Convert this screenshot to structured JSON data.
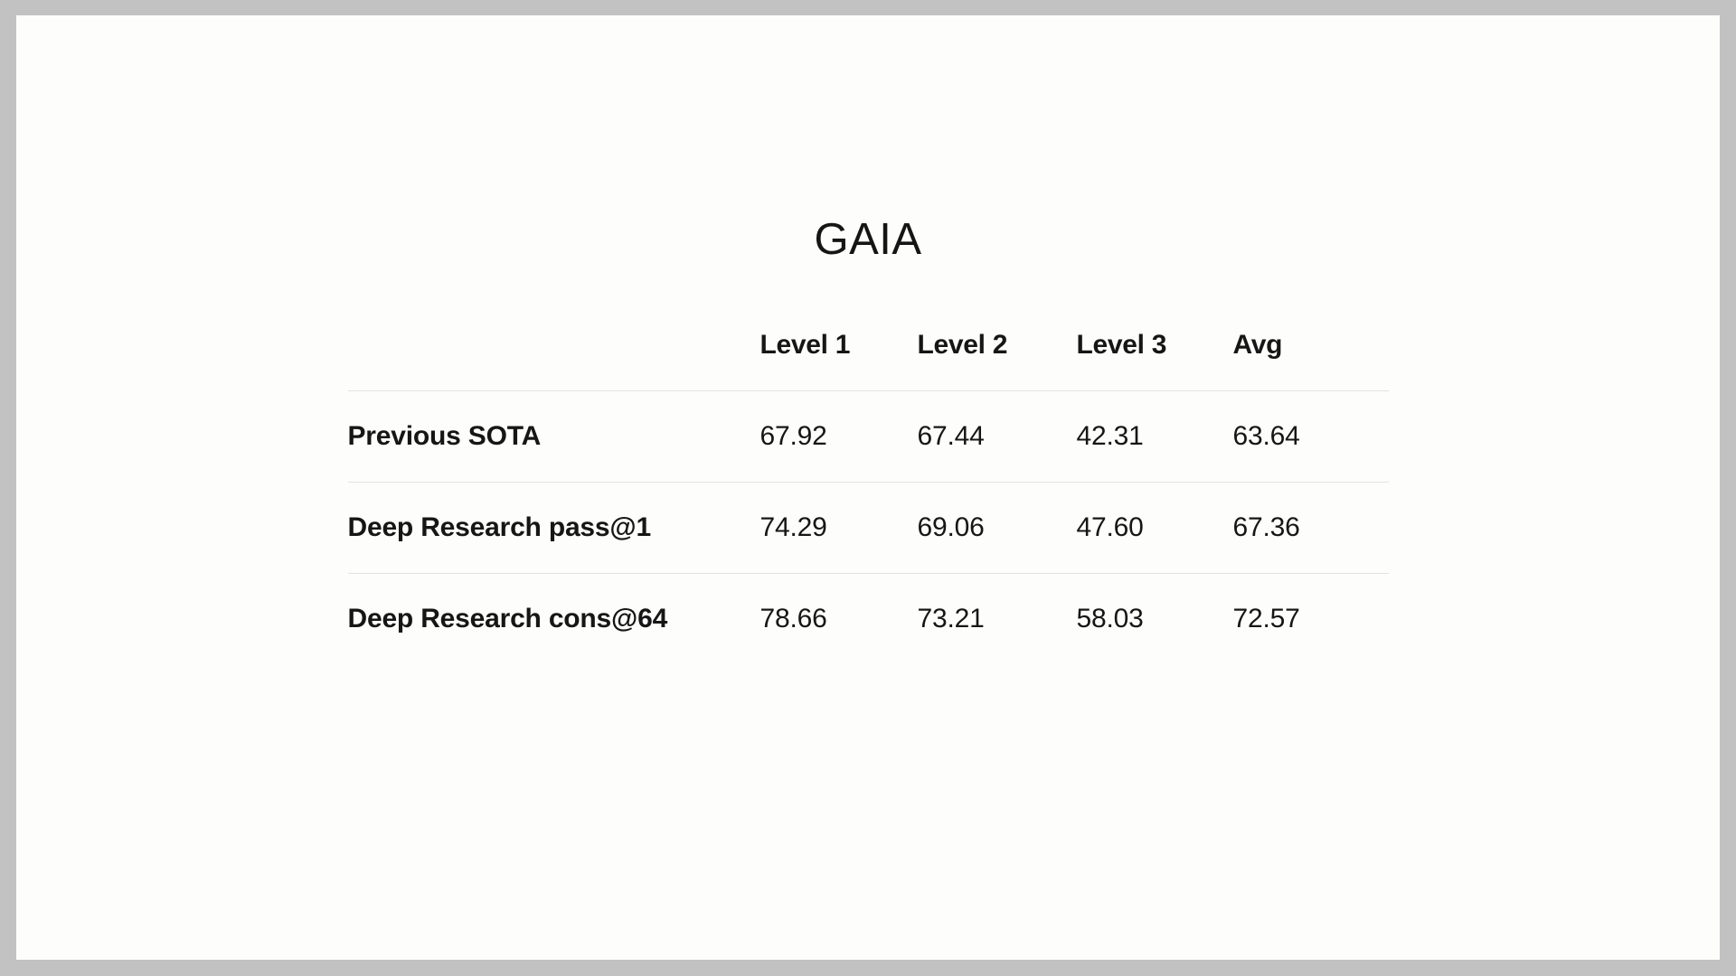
{
  "page": {
    "title": "GAIA"
  },
  "colors": {
    "frame_bg": "#c2c2c2",
    "page_bg": "#fdfdfb",
    "text": "#161616",
    "divider": "#e3e3e2"
  },
  "table": {
    "columns": [
      "Level 1",
      "Level 2",
      "Level 3",
      "Avg"
    ],
    "rows": [
      {
        "label": "Previous SOTA",
        "values": [
          "67.92",
          "67.44",
          "42.31",
          "63.64"
        ]
      },
      {
        "label": "Deep Research pass@1",
        "values": [
          "74.29",
          "69.06",
          "47.60",
          "67.36"
        ]
      },
      {
        "label": "Deep Research cons@64",
        "values": [
          "78.66",
          "73.21",
          "58.03",
          "72.57"
        ]
      }
    ]
  },
  "chart_data": {
    "type": "table",
    "title": "GAIA",
    "columns": [
      "",
      "Level 1",
      "Level 2",
      "Level 3",
      "Avg"
    ],
    "rows": [
      [
        "Previous SOTA",
        67.92,
        67.44,
        42.31,
        63.64
      ],
      [
        "Deep Research pass@1",
        74.29,
        69.06,
        47.6,
        67.36
      ],
      [
        "Deep Research cons@64",
        78.66,
        73.21,
        58.03,
        72.57
      ]
    ],
    "layout_hints": {
      "title_position": "top-center",
      "row_dividers": "below header, below row 1, below row 2",
      "column_alignment": "left"
    }
  }
}
